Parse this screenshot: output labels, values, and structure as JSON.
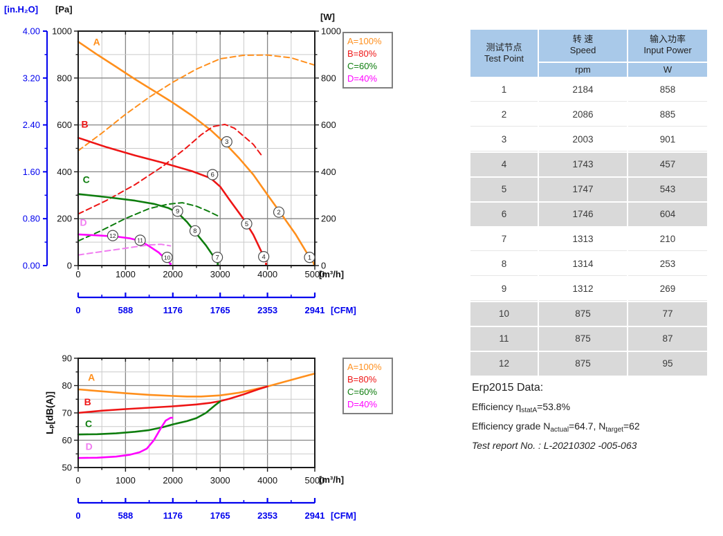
{
  "colors": {
    "blue": "#0000EE",
    "orange": "#FF8F1C",
    "red": "#EE1515",
    "green": "#0E7D0E",
    "magenta": "#FF00FF",
    "pink": "#F07CF0",
    "grid_major": "#858585",
    "grid_minor": "#CACACA",
    "axis": "#1A1A1A",
    "table_header_bg": "#A9C9E9",
    "table_shaded_bg": "#D9D9D9"
  },
  "chart_data": [
    {
      "type": "line",
      "title": "",
      "x_axis": {
        "label": "[m³/h]",
        "min": 0,
        "max": 5000,
        "major": 1000,
        "minor": 500,
        "ticks": [
          "0",
          "1000",
          "2000",
          "3000",
          "4000",
          "5000"
        ]
      },
      "y_axis_pa": {
        "label": "[Pa]",
        "min": 0,
        "max": 1000,
        "major": 200,
        "minor": 100,
        "ticks": [
          "0",
          "200",
          "400",
          "600",
          "800",
          "1000"
        ]
      },
      "y_axis_w": {
        "label": "[W]",
        "ticks": [
          "0",
          "200",
          "400",
          "600",
          "800",
          "1000"
        ]
      },
      "y_axis_inh2o": {
        "label": "[in.H₂O]",
        "ticks": [
          "0.00",
          "0.80",
          "1.60",
          "2.40",
          "3.20",
          "4.00"
        ]
      },
      "cfm_axis": {
        "label": "[CFM]",
        "ticks": [
          "0",
          "588",
          "1176",
          "1765",
          "2353",
          "2941"
        ]
      },
      "legend": [
        {
          "label": "A=100%",
          "color": "#FF8F1C"
        },
        {
          "label": "B=80%",
          "color": "#EE1515"
        },
        {
          "label": "C=60%",
          "color": "#0E7D0E"
        },
        {
          "label": "D=40%",
          "color": "#FF00FF"
        }
      ],
      "curve_labels": [
        {
          "text": "A",
          "color": "#FF8F1C",
          "x": 390,
          "y": 940
        },
        {
          "text": "B",
          "color": "#EE1515",
          "x": 140,
          "y": 588
        },
        {
          "text": "C",
          "color": "#0E7D0E",
          "x": 170,
          "y": 352
        },
        {
          "text": "D",
          "color": "#F07CF0",
          "x": 110,
          "y": 170
        }
      ],
      "series": [
        {
          "name": "A pressure",
          "color": "#FF8F1C",
          "dash": false,
          "points": [
            [
              0,
              955
            ],
            [
              400,
              900
            ],
            [
              800,
              848
            ],
            [
              1200,
              795
            ],
            [
              1600,
              745
            ],
            [
              2000,
              695
            ],
            [
              2400,
              640
            ],
            [
              2800,
              578
            ],
            [
              3100,
              522
            ],
            [
              3400,
              458
            ],
            [
              3700,
              388
            ],
            [
              4000,
              302
            ],
            [
              4300,
              218
            ],
            [
              4600,
              132
            ],
            [
              4850,
              48
            ],
            [
              4985,
              8
            ]
          ]
        },
        {
          "name": "A input power",
          "color": "#FF8F1C",
          "dash": true,
          "points": [
            [
              0,
              490
            ],
            [
              500,
              565
            ],
            [
              1000,
              645
            ],
            [
              1500,
              718
            ],
            [
              2000,
              782
            ],
            [
              2500,
              838
            ],
            [
              3000,
              882
            ],
            [
              3500,
              897
            ],
            [
              4000,
              898
            ],
            [
              4500,
              886
            ],
            [
              5000,
              855
            ]
          ]
        },
        {
          "name": "B pressure",
          "color": "#EE1515",
          "dash": false,
          "points": [
            [
              0,
              545
            ],
            [
              600,
              505
            ],
            [
              1200,
              470
            ],
            [
              1800,
              438
            ],
            [
              2400,
              403
            ],
            [
              2800,
              373
            ],
            [
              3000,
              337
            ],
            [
              3200,
              280
            ],
            [
              3500,
              197
            ],
            [
              3700,
              132
            ],
            [
              3970,
              18
            ]
          ]
        },
        {
          "name": "B input power",
          "color": "#EE1515",
          "dash": true,
          "points": [
            [
              0,
              220
            ],
            [
              600,
              278
            ],
            [
              1200,
              345
            ],
            [
              1800,
              425
            ],
            [
              2300,
              505
            ],
            [
              2600,
              558
            ],
            [
              2850,
              593
            ],
            [
              3100,
              602
            ],
            [
              3300,
              586
            ],
            [
              3550,
              543
            ],
            [
              3700,
              517
            ],
            [
              3900,
              463
            ]
          ]
        },
        {
          "name": "C pressure",
          "color": "#0E7D0E",
          "dash": false,
          "points": [
            [
              0,
              305
            ],
            [
              600,
              292
            ],
            [
              1200,
              277
            ],
            [
              1600,
              263
            ],
            [
              1900,
              246
            ],
            [
              2100,
              226
            ],
            [
              2300,
              186
            ],
            [
              2500,
              136
            ],
            [
              2700,
              86
            ],
            [
              2950,
              12
            ]
          ]
        },
        {
          "name": "C input power",
          "color": "#0E7D0E",
          "dash": true,
          "points": [
            [
              0,
              105
            ],
            [
              500,
              150
            ],
            [
              1000,
              201
            ],
            [
              1500,
              243
            ],
            [
              1900,
              262
            ],
            [
              2200,
              268
            ],
            [
              2500,
              253
            ],
            [
              2750,
              232
            ],
            [
              2950,
              212
            ]
          ]
        },
        {
          "name": "D pressure",
          "color": "#FF00FF",
          "dash": false,
          "points": [
            [
              0,
              133
            ],
            [
              400,
              129
            ],
            [
              800,
              124
            ],
            [
              1100,
              116
            ],
            [
              1300,
              106
            ],
            [
              1500,
              83
            ],
            [
              1700,
              56
            ],
            [
              1950,
              8
            ]
          ]
        },
        {
          "name": "D input power",
          "color": "#F07CF0",
          "dash": true,
          "points": [
            [
              0,
              45
            ],
            [
              400,
              57
            ],
            [
              800,
              68
            ],
            [
              1200,
              80
            ],
            [
              1500,
              88
            ],
            [
              1750,
              91
            ],
            [
              1950,
              84
            ]
          ]
        }
      ],
      "test_points": [
        {
          "n": "1",
          "x": 4890,
          "y": 35
        },
        {
          "n": "2",
          "x": 4240,
          "y": 228
        },
        {
          "n": "3",
          "x": 3140,
          "y": 528
        },
        {
          "n": "4",
          "x": 3920,
          "y": 38
        },
        {
          "n": "5",
          "x": 3560,
          "y": 178
        },
        {
          "n": "6",
          "x": 2840,
          "y": 388
        },
        {
          "n": "7",
          "x": 2940,
          "y": 35
        },
        {
          "n": "8",
          "x": 2470,
          "y": 148
        },
        {
          "n": "9",
          "x": 2100,
          "y": 232
        },
        {
          "n": "10",
          "x": 1880,
          "y": 35
        },
        {
          "n": "11",
          "x": 1310,
          "y": 108
        },
        {
          "n": "12",
          "x": 730,
          "y": 128
        }
      ],
      "end_ticks": [
        {
          "x": 1950,
          "color": "#FF00FF"
        },
        {
          "x": 2950,
          "color": "#0E7D0E"
        },
        {
          "x": 3970,
          "color": "#EE1515"
        },
        {
          "x": 4985,
          "color": "#FF8F1C"
        }
      ]
    },
    {
      "type": "line",
      "title": "",
      "x_axis": {
        "label": "[m³/h]",
        "min": 0,
        "max": 5000,
        "major": 1000,
        "minor": 500,
        "ticks": [
          "0",
          "1000",
          "2000",
          "3000",
          "4000",
          "5000"
        ]
      },
      "y_axis": {
        "label": "Lₚ[dB(A)]",
        "min": 50,
        "max": 90,
        "major": 10,
        "minor": 5,
        "ticks": [
          "50",
          "60",
          "70",
          "80",
          "90"
        ]
      },
      "cfm_axis": {
        "label": "[CFM]",
        "ticks": [
          "0",
          "588",
          "1176",
          "1765",
          "2353",
          "2941"
        ]
      },
      "legend": [
        {
          "label": "A=100%",
          "color": "#FF8F1C"
        },
        {
          "label": "B=80%",
          "color": "#EE1515"
        },
        {
          "label": "C=60%",
          "color": "#0E7D0E"
        },
        {
          "label": "D=40%",
          "color": "#FF00FF"
        }
      ],
      "curve_labels": [
        {
          "text": "A",
          "color": "#FF8F1C",
          "x": 280,
          "y": 81.8
        },
        {
          "text": "B",
          "color": "#EE1515",
          "x": 200,
          "y": 72.8
        },
        {
          "text": "C",
          "color": "#0E7D0E",
          "x": 220,
          "y": 64.8
        },
        {
          "text": "D",
          "color": "#F07CF0",
          "x": 230,
          "y": 56.4
        }
      ],
      "series": [
        {
          "name": "A sound level",
          "color": "#FF8F1C",
          "dash": false,
          "points": [
            [
              0,
              78.6
            ],
            [
              500,
              77.9
            ],
            [
              1000,
              77.2
            ],
            [
              1500,
              76.6
            ],
            [
              2000,
              76.2
            ],
            [
              2300,
              76.0
            ],
            [
              2600,
              76.0
            ],
            [
              3000,
              76.4
            ],
            [
              3400,
              77.4
            ],
            [
              3700,
              78.5
            ],
            [
              4000,
              79.7
            ],
            [
              4400,
              81.6
            ],
            [
              4700,
              83.0
            ],
            [
              5000,
              84.4
            ]
          ]
        },
        {
          "name": "B sound level",
          "color": "#EE1515",
          "dash": false,
          "points": [
            [
              0,
              70.0
            ],
            [
              500,
              70.8
            ],
            [
              1000,
              71.4
            ],
            [
              1500,
              71.9
            ],
            [
              2000,
              72.4
            ],
            [
              2500,
              73.1
            ],
            [
              2800,
              73.7
            ],
            [
              3000,
              74.3
            ],
            [
              3200,
              75.2
            ],
            [
              3500,
              76.8
            ],
            [
              3800,
              78.6
            ],
            [
              4000,
              79.7
            ]
          ]
        },
        {
          "name": "C sound level",
          "color": "#0E7D0E",
          "dash": false,
          "points": [
            [
              0,
              62.1
            ],
            [
              400,
              62.2
            ],
            [
              800,
              62.5
            ],
            [
              1200,
              63.1
            ],
            [
              1500,
              63.7
            ],
            [
              1800,
              64.8
            ],
            [
              2000,
              65.8
            ],
            [
              2300,
              67.0
            ],
            [
              2500,
              68.1
            ],
            [
              2700,
              70.0
            ],
            [
              2900,
              72.9
            ],
            [
              3000,
              74.2
            ]
          ]
        },
        {
          "name": "D sound level",
          "color": "#FF00FF",
          "dash": false,
          "points": [
            [
              0,
              53.5
            ],
            [
              400,
              53.6
            ],
            [
              800,
              54.0
            ],
            [
              1100,
              54.7
            ],
            [
              1300,
              55.6
            ],
            [
              1450,
              56.9
            ],
            [
              1600,
              60.0
            ],
            [
              1750,
              64.5
            ],
            [
              1850,
              67.2
            ],
            [
              1950,
              68.2
            ],
            [
              1990,
              68.2
            ]
          ]
        }
      ]
    }
  ],
  "table": {
    "col1_header": [
      "测试节点",
      "Test Point"
    ],
    "col2_header": [
      "转 速",
      "Speed"
    ],
    "col2_unit": "rpm",
    "col3_header": [
      "输入功率",
      "Input Power"
    ],
    "col3_unit": "W",
    "rows": [
      {
        "point": "1",
        "speed": "2184",
        "power": "858",
        "shaded": false
      },
      {
        "point": "2",
        "speed": "2086",
        "power": "885",
        "shaded": false
      },
      {
        "point": "3",
        "speed": "2003",
        "power": "901",
        "shaded": false
      },
      {
        "point": "4",
        "speed": "1743",
        "power": "457",
        "shaded": true
      },
      {
        "point": "5",
        "speed": "1747",
        "power": "543",
        "shaded": true
      },
      {
        "point": "6",
        "speed": "1746",
        "power": "604",
        "shaded": true
      },
      {
        "point": "7",
        "speed": "1313",
        "power": "210",
        "shaded": false
      },
      {
        "point": "8",
        "speed": "1314",
        "power": "253",
        "shaded": false
      },
      {
        "point": "9",
        "speed": "1312",
        "power": "269",
        "shaded": false
      },
      {
        "point": "10",
        "speed": "875",
        "power": "77",
        "shaded": true
      },
      {
        "point": "11",
        "speed": "875",
        "power": "87",
        "shaded": true
      },
      {
        "point": "12",
        "speed": "875",
        "power": "95",
        "shaded": true
      }
    ]
  },
  "erp": {
    "title": "Erp2015  Data:",
    "lines": [
      {
        "italic": false,
        "segments": [
          {
            "t": "Efficiency η"
          },
          {
            "t": "statA",
            "sub": true
          },
          {
            "t": "=53.8%"
          }
        ]
      },
      {
        "italic": false,
        "segments": [
          {
            "t": "Efficiency grade N"
          },
          {
            "t": "actual",
            "sub": true
          },
          {
            "t": "=64.7, N"
          },
          {
            "t": "target",
            "sub": true
          },
          {
            "t": "=62"
          }
        ]
      },
      {
        "italic": true,
        "segments": [
          {
            "t": "Test report No. : L-20210302 -005-063"
          }
        ]
      }
    ]
  }
}
